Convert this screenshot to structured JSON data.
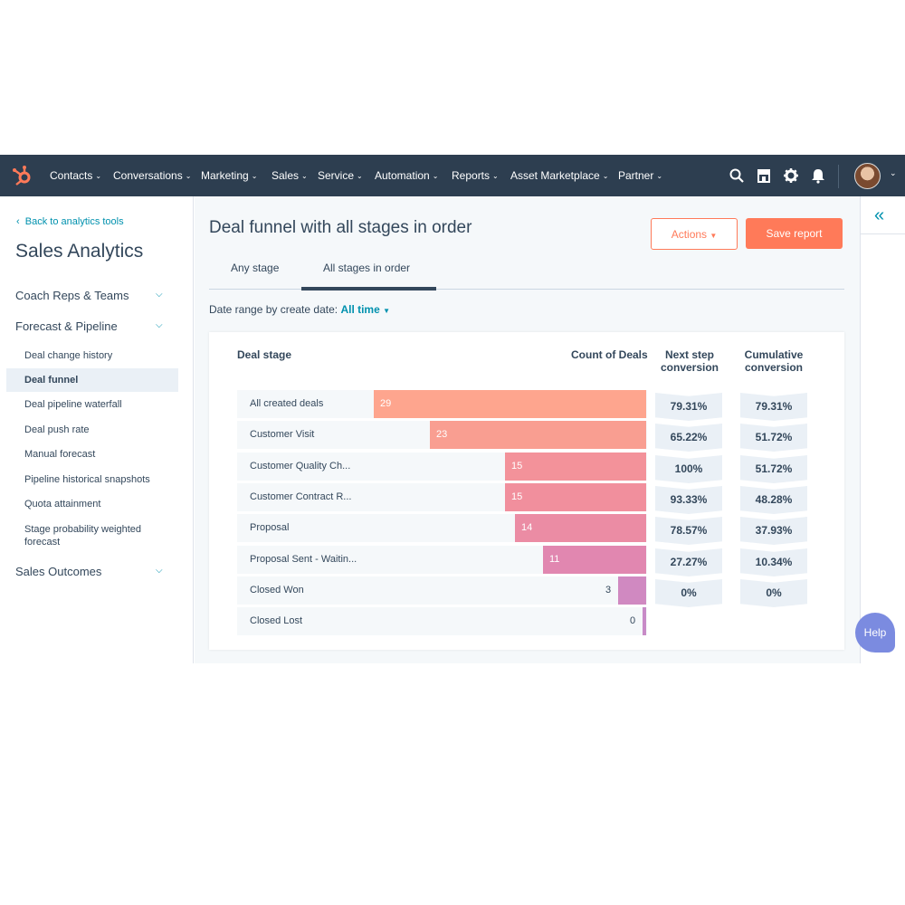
{
  "nav": {
    "items": [
      "Contacts",
      "Conversations",
      "Marketing",
      "Sales",
      "Service",
      "Automation",
      "Reports",
      "Asset Marketplace",
      "Partner"
    ]
  },
  "sidebar": {
    "back_link": "Back to analytics tools",
    "title": "Sales Analytics",
    "sections": {
      "coach": "Coach Reps & Teams",
      "forecast": "Forecast & Pipeline",
      "outcomes": "Sales Outcomes"
    },
    "items": [
      "Deal change history",
      "Deal funnel",
      "Deal pipeline waterfall",
      "Deal push rate",
      "Manual forecast",
      "Pipeline historical snapshots",
      "Quota attainment",
      "Stage probability weighted forecast"
    ]
  },
  "header": {
    "title": "Deal funnel with all stages in order",
    "actions_label": "Actions",
    "save_label": "Save report"
  },
  "tabs": [
    "Any stage",
    "All stages in order"
  ],
  "date_range": {
    "label": "Date range by create date:",
    "value": "All time"
  },
  "table": {
    "col_stage": "Deal stage",
    "col_count": "Count of Deals",
    "col_next_1": "Next step",
    "col_next_2": "conversion",
    "col_cum_1": "Cumulative",
    "col_cum_2": "conversion"
  },
  "chart_data": {
    "type": "bar",
    "categories": [
      "All created deals",
      "Customer Visit",
      "Customer Quality Ch...",
      "Customer Contract R...",
      "Proposal",
      "Proposal Sent - Waitin...",
      "Closed Won",
      "Closed Lost"
    ],
    "series": [
      {
        "values": [
          29,
          23,
          15,
          15,
          14,
          11,
          3,
          0
        ]
      }
    ],
    "next_step_conversion": [
      "79.31%",
      "65.22%",
      "100%",
      "93.33%",
      "78.57%",
      "27.27%",
      "0%"
    ],
    "cumulative_conversion": [
      "79.31%",
      "51.72%",
      "51.72%",
      "48.28%",
      "37.93%",
      "10.34%",
      "0%"
    ],
    "colors": [
      "#fea58e",
      "#f99e91",
      "#f3929a",
      "#f18f9d",
      "#eb8ca4",
      "#e187b0",
      "#d089c1",
      "#c88bc7"
    ],
    "xlim": [
      0,
      29
    ]
  },
  "help_label": "Help"
}
